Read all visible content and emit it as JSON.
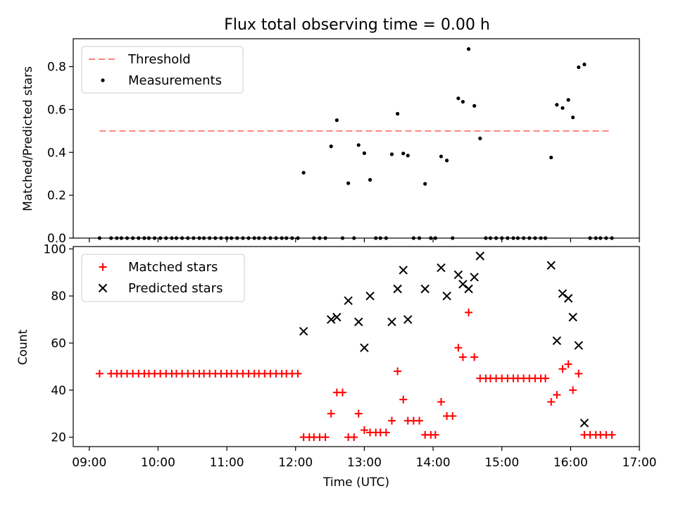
{
  "figure": {
    "title": "Flux total observing time = 0.00 h",
    "xlabel": "Time (UTC)",
    "x_ticks": [
      "09:00",
      "10:00",
      "11:00",
      "12:00",
      "13:00",
      "14:00",
      "15:00",
      "16:00",
      "17:00"
    ]
  },
  "chart_data": [
    {
      "type": "scatter",
      "title": "Flux total observing time = 0.00 h",
      "ylabel": "Matched/Predicted stars",
      "xlim": [
        "08:46",
        "17:00"
      ],
      "ylim": [
        0,
        0.93
      ],
      "y_ticks": [
        "0.0",
        "0.2",
        "0.4",
        "0.6",
        "0.8"
      ],
      "threshold": {
        "name": "Threshold",
        "value": 0.5,
        "x_range": [
          "09:09",
          "16:35"
        ],
        "color": "#ff8080",
        "style": "dashed"
      },
      "legend": {
        "location": "upper left",
        "entries": [
          "Threshold",
          "Measurements"
        ]
      },
      "series": [
        {
          "name": "Measurements",
          "color": "#000000",
          "marker": "dot",
          "points": [
            [
              "09:09",
              0
            ],
            [
              "09:19",
              0
            ],
            [
              "09:24",
              0
            ],
            [
              "09:28",
              0
            ],
            [
              "09:33",
              0
            ],
            [
              "09:38",
              0
            ],
            [
              "09:43",
              0
            ],
            [
              "09:48",
              0
            ],
            [
              "09:52",
              0
            ],
            [
              "09:57",
              0
            ],
            [
              "10:02",
              0
            ],
            [
              "10:07",
              0
            ],
            [
              "10:12",
              0
            ],
            [
              "10:16",
              0
            ],
            [
              "10:21",
              0
            ],
            [
              "10:26",
              0
            ],
            [
              "10:31",
              0
            ],
            [
              "10:36",
              0
            ],
            [
              "10:40",
              0
            ],
            [
              "10:45",
              0
            ],
            [
              "10:50",
              0
            ],
            [
              "10:55",
              0
            ],
            [
              "11:00",
              0
            ],
            [
              "11:04",
              0
            ],
            [
              "11:09",
              0
            ],
            [
              "11:14",
              0
            ],
            [
              "11:19",
              0
            ],
            [
              "11:24",
              0
            ],
            [
              "11:28",
              0
            ],
            [
              "11:33",
              0
            ],
            [
              "11:38",
              0
            ],
            [
              "11:43",
              0
            ],
            [
              "11:48",
              0
            ],
            [
              "11:52",
              0
            ],
            [
              "11:57",
              0
            ],
            [
              "12:02",
              0
            ],
            [
              "12:07",
              0.305
            ],
            [
              "12:16",
              0
            ],
            [
              "12:21",
              0
            ],
            [
              "12:26",
              0
            ],
            [
              "12:31",
              0.428
            ],
            [
              "12:36",
              0.55
            ],
            [
              "12:41",
              0
            ],
            [
              "12:46",
              0.256
            ],
            [
              "12:51",
              0
            ],
            [
              "12:55",
              0.434
            ],
            [
              "13:00",
              0.396
            ],
            [
              "13:05",
              0.272
            ],
            [
              "13:10",
              0
            ],
            [
              "13:14",
              0
            ],
            [
              "13:19",
              0
            ],
            [
              "13:24",
              0.391
            ],
            [
              "13:29",
              0.58
            ],
            [
              "13:34",
              0.395
            ],
            [
              "13:38",
              0.385
            ],
            [
              "13:43",
              0
            ],
            [
              "13:48",
              0
            ],
            [
              "13:53",
              0.253
            ],
            [
              "13:58",
              0
            ],
            [
              "14:02",
              0
            ],
            [
              "14:07",
              0.381
            ],
            [
              "14:12",
              0.362
            ],
            [
              "14:17",
              0
            ],
            [
              "14:22",
              0.652
            ],
            [
              "14:26",
              0.636
            ],
            [
              "14:31",
              0.882
            ],
            [
              "14:36",
              0.617
            ],
            [
              "14:41",
              0.465
            ],
            [
              "14:46",
              0
            ],
            [
              "14:50",
              0
            ],
            [
              "14:55",
              0
            ],
            [
              "15:00",
              0
            ],
            [
              "15:05",
              0
            ],
            [
              "15:10",
              0
            ],
            [
              "15:14",
              0
            ],
            [
              "15:19",
              0
            ],
            [
              "15:24",
              0
            ],
            [
              "15:29",
              0
            ],
            [
              "15:34",
              0
            ],
            [
              "15:38",
              0
            ],
            [
              "15:43",
              0.376
            ],
            [
              "15:48",
              0.622
            ],
            [
              "15:53",
              0.607
            ],
            [
              "15:58",
              0.645
            ],
            [
              "16:02",
              0.563
            ],
            [
              "16:07",
              0.797
            ],
            [
              "16:12",
              0.81
            ],
            [
              "16:17",
              0
            ],
            [
              "16:22",
              0
            ],
            [
              "16:26",
              0
            ],
            [
              "16:31",
              0
            ],
            [
              "16:36",
              0
            ]
          ]
        }
      ]
    },
    {
      "type": "scatter",
      "ylabel": "Count",
      "xlabel": "Time (UTC)",
      "xlim": [
        "08:46",
        "17:00"
      ],
      "ylim": [
        16,
        101
      ],
      "y_ticks": [
        "20",
        "40",
        "60",
        "80",
        "100"
      ],
      "legend": {
        "location": "upper left",
        "entries": [
          "Matched stars",
          "Predicted stars"
        ]
      },
      "series": [
        {
          "name": "Matched stars",
          "color": "#ff0000",
          "marker": "plus",
          "points": [
            [
              "09:09",
              47
            ],
            [
              "09:19",
              47
            ],
            [
              "09:24",
              47
            ],
            [
              "09:28",
              47
            ],
            [
              "09:33",
              47
            ],
            [
              "09:38",
              47
            ],
            [
              "09:43",
              47
            ],
            [
              "09:48",
              47
            ],
            [
              "09:52",
              47
            ],
            [
              "09:57",
              47
            ],
            [
              "10:02",
              47
            ],
            [
              "10:07",
              47
            ],
            [
              "10:12",
              47
            ],
            [
              "10:16",
              47
            ],
            [
              "10:21",
              47
            ],
            [
              "10:26",
              47
            ],
            [
              "10:31",
              47
            ],
            [
              "10:36",
              47
            ],
            [
              "10:40",
              47
            ],
            [
              "10:45",
              47
            ],
            [
              "10:50",
              47
            ],
            [
              "10:55",
              47
            ],
            [
              "11:00",
              47
            ],
            [
              "11:04",
              47
            ],
            [
              "11:09",
              47
            ],
            [
              "11:14",
              47
            ],
            [
              "11:19",
              47
            ],
            [
              "11:24",
              47
            ],
            [
              "11:28",
              47
            ],
            [
              "11:33",
              47
            ],
            [
              "11:38",
              47
            ],
            [
              "11:43",
              47
            ],
            [
              "11:48",
              47
            ],
            [
              "11:52",
              47
            ],
            [
              "11:57",
              47
            ],
            [
              "12:02",
              47
            ],
            [
              "12:07",
              20
            ],
            [
              "12:12",
              20
            ],
            [
              "12:16",
              20
            ],
            [
              "12:21",
              20
            ],
            [
              "12:26",
              20
            ],
            [
              "12:31",
              30
            ],
            [
              "12:36",
              39
            ],
            [
              "12:41",
              39
            ],
            [
              "12:46",
              20
            ],
            [
              "12:51",
              20
            ],
            [
              "12:55",
              30
            ],
            [
              "13:00",
              23
            ],
            [
              "13:05",
              22
            ],
            [
              "13:10",
              22
            ],
            [
              "13:14",
              22
            ],
            [
              "13:19",
              22
            ],
            [
              "13:24",
              27
            ],
            [
              "13:29",
              48
            ],
            [
              "13:34",
              36
            ],
            [
              "13:38",
              27
            ],
            [
              "13:43",
              27
            ],
            [
              "13:48",
              27
            ],
            [
              "13:53",
              21
            ],
            [
              "13:58",
              21
            ],
            [
              "14:02",
              21
            ],
            [
              "14:07",
              35
            ],
            [
              "14:12",
              29
            ],
            [
              "14:17",
              29
            ],
            [
              "14:22",
              58
            ],
            [
              "14:26",
              54
            ],
            [
              "14:31",
              73
            ],
            [
              "14:36",
              54
            ],
            [
              "14:41",
              45
            ],
            [
              "14:46",
              45
            ],
            [
              "14:50",
              45
            ],
            [
              "14:55",
              45
            ],
            [
              "15:00",
              45
            ],
            [
              "15:05",
              45
            ],
            [
              "15:10",
              45
            ],
            [
              "15:14",
              45
            ],
            [
              "15:19",
              45
            ],
            [
              "15:24",
              45
            ],
            [
              "15:29",
              45
            ],
            [
              "15:34",
              45
            ],
            [
              "15:38",
              45
            ],
            [
              "15:43",
              35
            ],
            [
              "15:48",
              38
            ],
            [
              "15:53",
              49
            ],
            [
              "15:58",
              51
            ],
            [
              "16:02",
              40
            ],
            [
              "16:07",
              47
            ],
            [
              "16:12",
              21
            ],
            [
              "16:17",
              21
            ],
            [
              "16:22",
              21
            ],
            [
              "16:26",
              21
            ],
            [
              "16:31",
              21
            ],
            [
              "16:36",
              21
            ]
          ]
        },
        {
          "name": "Predicted stars",
          "color": "#000000",
          "marker": "x",
          "points": [
            [
              "12:07",
              65
            ],
            [
              "12:31",
              70
            ],
            [
              "12:36",
              71
            ],
            [
              "12:46",
              78
            ],
            [
              "12:55",
              69
            ],
            [
              "13:00",
              58
            ],
            [
              "13:05",
              80
            ],
            [
              "13:24",
              69
            ],
            [
              "13:29",
              83
            ],
            [
              "13:34",
              91
            ],
            [
              "13:38",
              70
            ],
            [
              "13:53",
              83
            ],
            [
              "14:07",
              92
            ],
            [
              "14:12",
              80
            ],
            [
              "14:22",
              89
            ],
            [
              "14:26",
              85
            ],
            [
              "14:31",
              83
            ],
            [
              "14:36",
              88
            ],
            [
              "14:41",
              97
            ],
            [
              "15:43",
              93
            ],
            [
              "15:48",
              61
            ],
            [
              "15:53",
              81
            ],
            [
              "15:58",
              79
            ],
            [
              "16:02",
              71
            ],
            [
              "16:07",
              59
            ],
            [
              "16:12",
              26
            ]
          ]
        }
      ]
    }
  ]
}
